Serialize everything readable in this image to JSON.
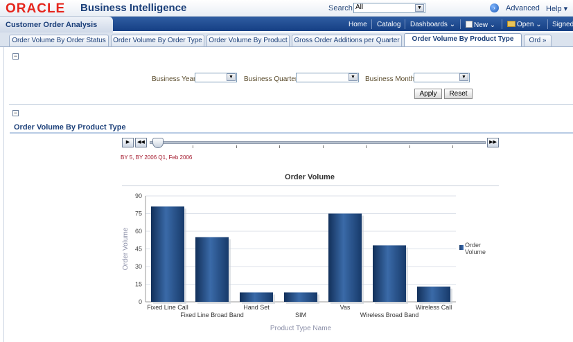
{
  "header": {
    "logo": "ORACLE",
    "product": "Business Intelligence",
    "search_label": "Search",
    "search_value": "All",
    "advanced_label": "Advanced",
    "help_label": "Help"
  },
  "nav": {
    "dashboard_title": "Customer Order Analysis",
    "home": "Home",
    "catalog": "Catalog",
    "dashboards": "Dashboards",
    "new": "New",
    "open": "Open",
    "signed": "Signed"
  },
  "tabs": [
    {
      "label": "Order Volume By Order Status"
    },
    {
      "label": "Order Volume By Order Type"
    },
    {
      "label": "Order Volume By Product"
    },
    {
      "label": "Gross Order Additions per Quarter"
    },
    {
      "label": "Order Volume By Product Type"
    },
    {
      "label": "Ord »"
    }
  ],
  "prompts": {
    "business_year": "Business Year",
    "business_quarter": "Business Quarter",
    "business_month": "Business Month",
    "apply": "Apply",
    "reset": "Reset"
  },
  "report": {
    "title": "Order Volume By Product Type",
    "slider_caption": "BY 5, BY 2006 Q1, Feb 2006"
  },
  "chart_data": {
    "type": "bar",
    "title": "Order Volume",
    "xlabel": "Product Type Name",
    "ylabel": "Order Volume",
    "ylim": [
      0,
      90
    ],
    "yticks": [
      "0",
      "15",
      "30",
      "45",
      "60",
      "75",
      "90"
    ],
    "categories": [
      "Fixed Line Call",
      "Fixed Line Broad Band",
      "Hand Set",
      "SIM",
      "Vas",
      "Wireless Broad Band",
      "Wireless Call"
    ],
    "series": [
      {
        "name": "Order Volume",
        "values": [
          81,
          55,
          8,
          8,
          75,
          48,
          13
        ]
      }
    ],
    "legend": "right",
    "grid": true,
    "bar_color": "#234a80"
  }
}
